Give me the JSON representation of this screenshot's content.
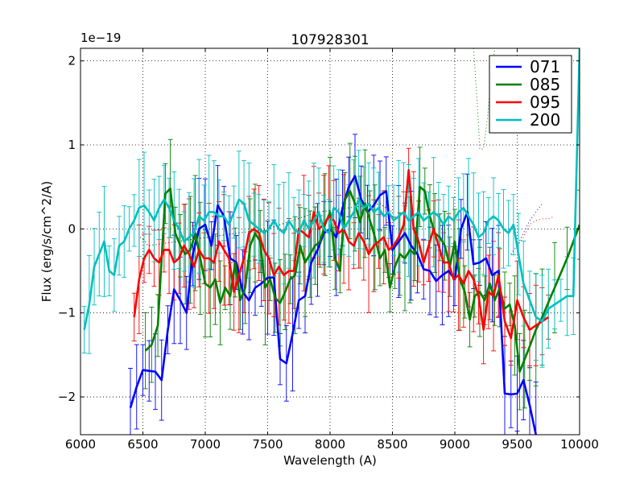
{
  "chart_data": {
    "type": "line",
    "title": "107928301",
    "xlabel": "Wavelength (A)",
    "ylabel": "Flux (erg/s/cm^2/A)",
    "offset_label": "1e−19",
    "xlim": [
      6000,
      10000
    ],
    "ylim": [
      -2.45,
      2.15
    ],
    "xticks": [
      6000,
      6500,
      7000,
      7500,
      8000,
      8500,
      9000,
      9500,
      10000
    ],
    "xtick_labels": [
      "6000",
      "6500",
      "7000",
      "7500",
      "8000",
      "8500",
      "9000",
      "9500",
      "10000"
    ],
    "yticks": [
      -2,
      -1,
      0,
      1,
      2
    ],
    "ytick_labels": [
      "−2",
      "−1",
      "0",
      "1",
      "2"
    ],
    "grid": true,
    "legend_position": "top-right",
    "series": [
      {
        "name": "071",
        "color": "#0000ff",
        "x": [
          6400,
          6450,
          6500,
          6550,
          6600,
          6650,
          6700,
          6750,
          6800,
          6850,
          6900,
          6950,
          7000,
          7050,
          7100,
          7150,
          7200,
          7250,
          7300,
          7350,
          7400,
          7450,
          7500,
          7550,
          7600,
          7650,
          7700,
          7750,
          7800,
          7850,
          7900,
          7950,
          8000,
          8050,
          8100,
          8150,
          8200,
          8250,
          8300,
          8350,
          8400,
          8450,
          8500,
          8550,
          8600,
          8650,
          8700,
          8750,
          8800,
          8850,
          8900,
          8950,
          9000,
          9050,
          9100,
          9150,
          9200,
          9250,
          9300,
          9350,
          9400,
          9450,
          9500,
          9550,
          9600,
          9650
        ],
        "y": [
          -2.13,
          -1.88,
          -1.68,
          -1.69,
          -1.7,
          -1.8,
          -1.2,
          -0.72,
          -0.85,
          -1.0,
          -0.3,
          0.0,
          0.05,
          -0.2,
          0.28,
          0.15,
          -0.35,
          -0.4,
          -0.75,
          -0.85,
          -0.7,
          -0.65,
          -0.58,
          -0.58,
          -1.55,
          -1.6,
          -1.25,
          -0.85,
          -0.8,
          -0.4,
          -0.25,
          -0.05,
          0.0,
          -0.1,
          0.25,
          0.5,
          0.63,
          0.35,
          0.2,
          0.28,
          0.4,
          0.45,
          -0.25,
          -0.15,
          -0.05,
          -0.2,
          -0.3,
          -0.48,
          -0.5,
          -0.62,
          -0.55,
          -0.5,
          -0.6,
          0.0,
          0.2,
          -0.42,
          -0.4,
          -0.35,
          -0.55,
          -0.5,
          -1.96,
          -1.97,
          -1.96,
          -1.8,
          -2.1,
          -2.45
        ]
      },
      {
        "name": "085",
        "color": "#008000",
        "x": [
          6520,
          6570,
          6620,
          6680,
          6720,
          6760,
          6800,
          6840,
          6880,
          6920,
          6960,
          7000,
          7040,
          7080,
          7120,
          7160,
          7200,
          7240,
          7280,
          7320,
          7360,
          7400,
          7440,
          7480,
          7520,
          7560,
          7600,
          7640,
          7680,
          7720,
          7760,
          7800,
          7840,
          7880,
          7920,
          7960,
          8000,
          8040,
          8080,
          8120,
          8160,
          8200,
          8240,
          8280,
          8320,
          8360,
          8400,
          8440,
          8480,
          8520,
          8560,
          8600,
          8640,
          8680,
          8720,
          8760,
          8800,
          8840,
          8880,
          8920,
          8960,
          9000,
          9040,
          9080,
          9120,
          9160,
          9200,
          9240,
          9280,
          9320,
          9360,
          9400,
          9440,
          9480,
          9520,
          9560,
          9600,
          9650,
          9700,
          9800,
          9900,
          10000
        ],
        "y": [
          -1.45,
          -1.38,
          -1.15,
          0.42,
          0.48,
          -0.05,
          -0.2,
          -0.3,
          -0.25,
          -0.05,
          -0.35,
          -0.65,
          -0.7,
          -0.6,
          -0.88,
          -0.7,
          -0.8,
          -0.4,
          -0.85,
          -0.7,
          -0.2,
          -0.05,
          -0.15,
          -0.7,
          -0.6,
          -0.82,
          -0.88,
          -0.75,
          -0.6,
          -0.55,
          -0.2,
          -0.4,
          -0.3,
          -0.2,
          -0.15,
          0.05,
          0.2,
          -0.35,
          -0.5,
          0.35,
          0.45,
          0.3,
          0.08,
          0.3,
          0.1,
          -0.1,
          -0.35,
          -0.25,
          -0.7,
          -0.45,
          -0.3,
          -0.35,
          -0.25,
          -0.3,
          0.5,
          0.45,
          0.15,
          -0.05,
          -0.1,
          -0.2,
          -0.45,
          -0.15,
          -0.6,
          -0.75,
          -1.08,
          -0.8,
          -0.75,
          -0.85,
          -0.65,
          -0.85,
          -0.7,
          -0.95,
          -0.9,
          -1.15,
          -1.7,
          -1.55,
          -1.4,
          -1.2,
          -1.05,
          -0.7,
          -0.35,
          0.05
        ]
      },
      {
        "name": "095",
        "color": "#ff0000",
        "x": [
          6430,
          6470,
          6510,
          6550,
          6590,
          6630,
          6670,
          6710,
          6750,
          6790,
          6830,
          6870,
          6910,
          6950,
          6990,
          7030,
          7070,
          7110,
          7150,
          7190,
          7230,
          7270,
          7310,
          7350,
          7390,
          7430,
          7470,
          7510,
          7550,
          7590,
          7630,
          7670,
          7710,
          7750,
          7790,
          7830,
          7870,
          7910,
          7950,
          7990,
          8030,
          8070,
          8110,
          8150,
          8190,
          8230,
          8270,
          8310,
          8350,
          8390,
          8430,
          8470,
          8510,
          8550,
          8590,
          8630,
          8670,
          8710,
          8750,
          8790,
          8830,
          8870,
          8910,
          8950,
          8990,
          9030,
          9070,
          9110,
          9150,
          9190,
          9230,
          9270,
          9310,
          9350,
          9400,
          9450,
          9500,
          9550,
          9600,
          9650,
          9700,
          9750
        ],
        "y": [
          -1.05,
          -0.6,
          -0.35,
          -0.25,
          -0.35,
          -0.4,
          -0.25,
          -0.25,
          -0.4,
          -0.35,
          -0.2,
          -0.3,
          -0.45,
          -0.25,
          -0.35,
          -0.35,
          -0.4,
          -0.15,
          -0.25,
          -0.35,
          -0.75,
          -0.55,
          -0.35,
          -0.05,
          0.0,
          -0.05,
          -0.25,
          -0.35,
          -0.55,
          -0.45,
          -0.55,
          -0.5,
          -0.5,
          0.0,
          -0.05,
          -0.1,
          0.2,
          0.0,
          0.05,
          0.15,
          0.1,
          -0.05,
          0.0,
          -0.15,
          -0.2,
          -0.05,
          -0.15,
          -0.3,
          -0.2,
          -0.15,
          -0.1,
          -0.25,
          -0.2,
          -0.1,
          0.05,
          0.7,
          0.0,
          -0.15,
          -0.4,
          -0.2,
          0.0,
          -0.2,
          -0.4,
          -0.4,
          -0.6,
          -0.55,
          -0.65,
          -0.5,
          -0.6,
          -0.8,
          -1.2,
          -0.75,
          -0.8,
          -0.55,
          -1.1,
          -1.3,
          -0.85,
          -1.05,
          -1.2,
          -1.15,
          -1.1,
          -1.05
        ]
      },
      {
        "name": "200",
        "color": "#00bfbf",
        "x": [
          6030,
          6070,
          6110,
          6150,
          6190,
          6230,
          6270,
          6310,
          6350,
          6390,
          6430,
          6470,
          6510,
          6550,
          6590,
          6630,
          6670,
          6710,
          6750,
          6790,
          6830,
          6870,
          6910,
          6950,
          6990,
          7030,
          7070,
          7110,
          7150,
          7190,
          7230,
          7270,
          7310,
          7350,
          7390,
          7430,
          7470,
          7510,
          7550,
          7590,
          7630,
          7670,
          7710,
          7750,
          7790,
          7830,
          7870,
          7910,
          7950,
          7990,
          8030,
          8070,
          8110,
          8150,
          8190,
          8230,
          8270,
          8310,
          8350,
          8390,
          8430,
          8470,
          8510,
          8550,
          8590,
          8630,
          8670,
          8710,
          8750,
          8790,
          8830,
          8870,
          8910,
          8950,
          8990,
          9030,
          9070,
          9110,
          9150,
          9190,
          9230,
          9270,
          9310,
          9350,
          9390,
          9430,
          9470,
          9510,
          9550,
          9600,
          9650,
          9700,
          9750,
          9800,
          9850,
          9900,
          9950,
          10000
        ],
        "y": [
          -1.2,
          -0.9,
          -0.45,
          -0.3,
          -0.15,
          -0.5,
          -0.55,
          -0.2,
          -0.15,
          0.0,
          0.1,
          0.25,
          0.28,
          0.2,
          0.1,
          0.25,
          0.35,
          0.25,
          0.1,
          0.0,
          -0.15,
          -0.1,
          -0.05,
          0.15,
          0.1,
          0.2,
          0.2,
          0.15,
          0.15,
          0.05,
          0.2,
          0.35,
          0.3,
          0.1,
          0.05,
          0.0,
          -0.05,
          0.0,
          0.1,
          0.0,
          -0.05,
          0.1,
          0.0,
          -0.05,
          0.1,
          0.0,
          0.1,
          0.2,
          0.0,
          -0.05,
          0.25,
          0.2,
          0.0,
          0.1,
          0.2,
          0.35,
          0.25,
          0.3,
          0.2,
          0.25,
          0.15,
          0.2,
          0.1,
          0.15,
          0.2,
          0.1,
          0.15,
          0.2,
          0.1,
          0.15,
          0.2,
          0.15,
          0.05,
          0.15,
          0.1,
          0.2,
          0.25,
          0.15,
          0.05,
          -0.1,
          -0.05,
          0.1,
          0.15,
          0.1,
          0.0,
          -0.05,
          0.05,
          -0.3,
          -0.65,
          -0.85,
          -1.05,
          -1.1,
          -0.95,
          -0.9,
          -0.85,
          -0.8,
          -0.8,
          2.15
        ]
      }
    ],
    "dotted_traces": [
      {
        "name": "green-dotted",
        "color": "#008000",
        "x": [
          9150,
          9180,
          9200,
          9230,
          9260,
          9290,
          9320
        ],
        "y": [
          2.15,
          1.5,
          0.95,
          0.95,
          1.3,
          1.8,
          2.15
        ]
      },
      {
        "name": "blue-dotted",
        "color": "#0000ff",
        "x": [
          9450,
          9500,
          9550,
          9600,
          9650,
          9700
        ],
        "y": [
          -0.3,
          -0.2,
          -0.05,
          0.1,
          0.2,
          0.3
        ]
      },
      {
        "name": "red-dotted",
        "color": "#ff0000",
        "x": [
          9500,
          9550,
          9600,
          9650,
          9700,
          9750,
          9800
        ],
        "y": [
          -0.2,
          -0.1,
          0.05,
          0.1,
          0.12,
          0.12,
          0.15
        ]
      },
      {
        "name": "black-dotted",
        "color": "#000000",
        "x": [
          6480,
          6520,
          6540,
          7500,
          7900,
          8400,
          8500
        ],
        "y": [
          -0.1,
          -0.15,
          -0.2,
          0.0,
          0.2,
          0.3,
          0.2
        ]
      }
    ]
  }
}
